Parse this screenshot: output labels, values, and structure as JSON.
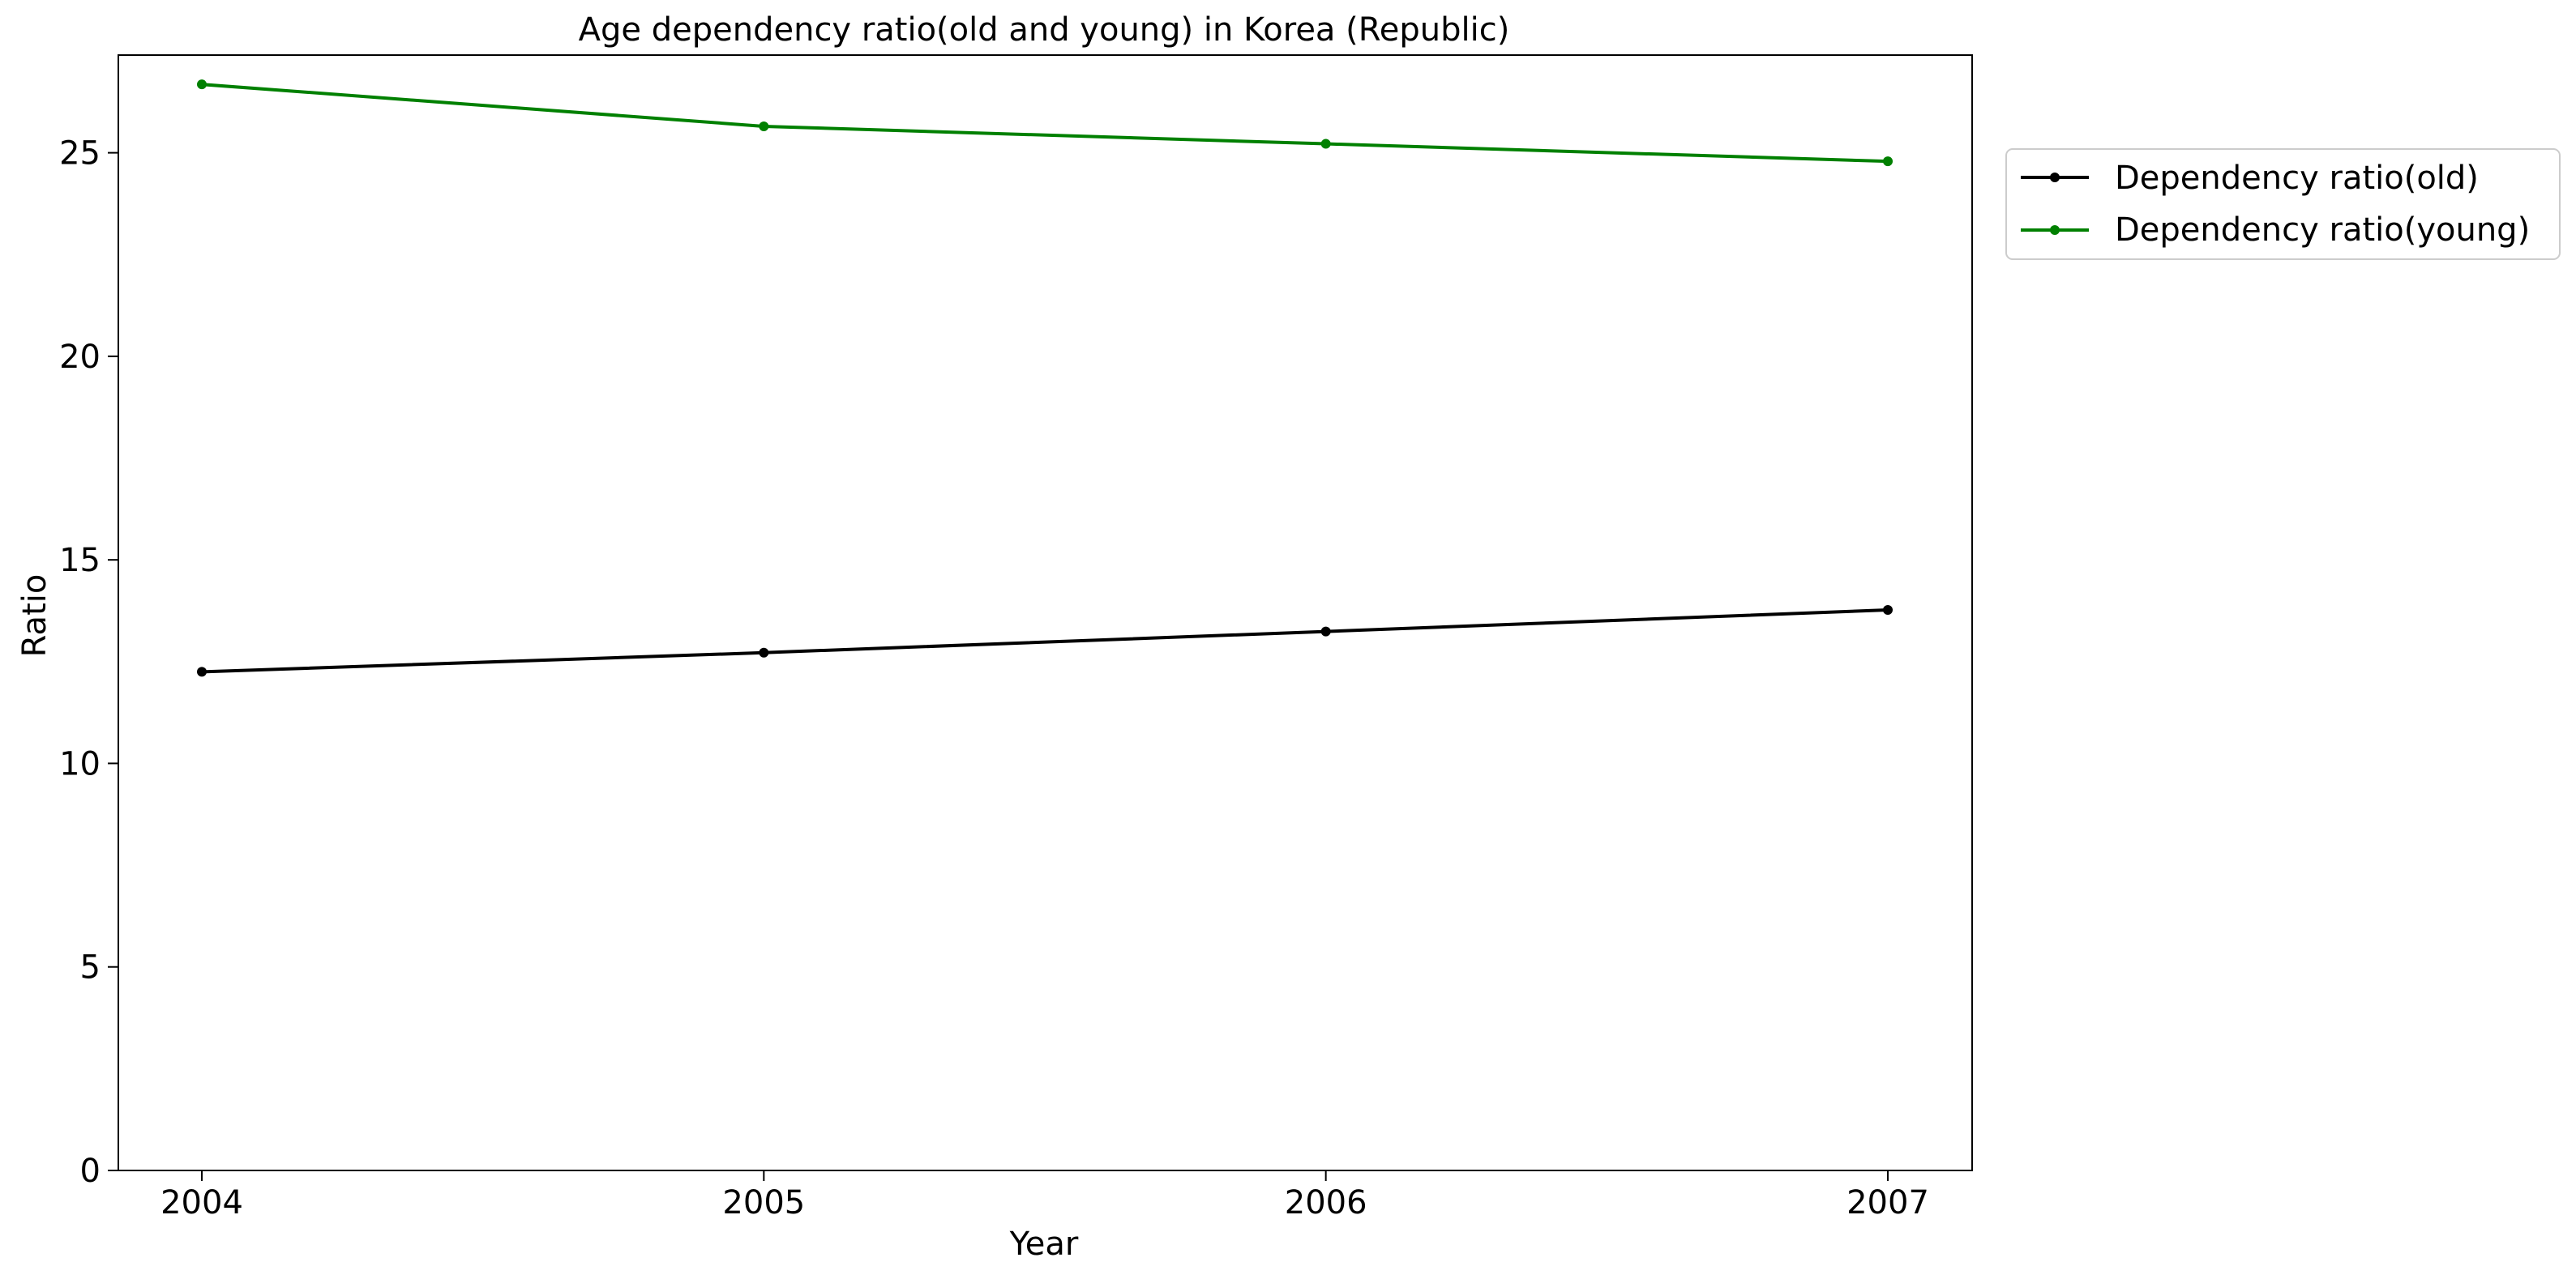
{
  "chart_data": {
    "type": "line",
    "title": "Age dependency ratio(old and young) in Korea (Republic)",
    "xlabel": "Year",
    "ylabel": "Ratio",
    "x": [
      2004,
      2005,
      2006,
      2007
    ],
    "xticks": [
      "2004",
      "2005",
      "2006",
      "2007"
    ],
    "ylim": [
      0,
      27.4
    ],
    "yticks": [
      0,
      5,
      10,
      15,
      20,
      25
    ],
    "grid": false,
    "legend_position": "outside-upper-right",
    "series": [
      {
        "name": "Dependency ratio(old)",
        "color": "#000000",
        "marker": "dot",
        "values": [
          12.25,
          12.72,
          13.24,
          13.77
        ]
      },
      {
        "name": "Dependency ratio(young)",
        "color": "#008000",
        "marker": "dot",
        "values": [
          26.68,
          25.65,
          25.22,
          24.79
        ]
      }
    ]
  }
}
